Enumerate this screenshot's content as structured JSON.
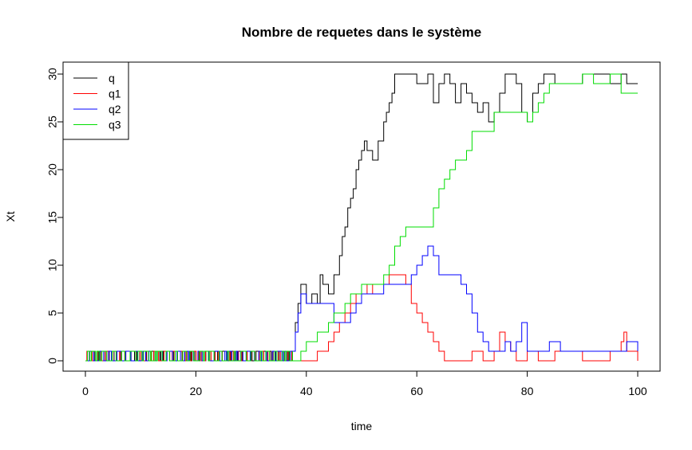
{
  "chart_data": {
    "type": "line",
    "title": "Nombre de requetes dans le système",
    "xlabel": "time",
    "ylabel": "Xt",
    "xlim": [
      0,
      100
    ],
    "ylim": [
      0,
      30
    ],
    "xticks": [
      0,
      20,
      40,
      60,
      80,
      100
    ],
    "yticks": [
      0,
      5,
      10,
      15,
      20,
      25,
      30
    ],
    "legend_position": "top-left",
    "series": [
      {
        "name": "q",
        "color": "#000000",
        "x": [
          0,
          37.5,
          38,
          38.5,
          39,
          40,
          41,
          42,
          42.5,
          43,
          44,
          45,
          46,
          46.5,
          47,
          47.5,
          48,
          48.5,
          49,
          49.5,
          50,
          50.5,
          51,
          52,
          53,
          54,
          54.5,
          55,
          55.5,
          56,
          57,
          60,
          62,
          63,
          64,
          65,
          66,
          67,
          68,
          69,
          70,
          71,
          72,
          73,
          74,
          75,
          76,
          78,
          79,
          80,
          81,
          82,
          83,
          85,
          90,
          95,
          97,
          98,
          100
        ],
        "values": [
          1,
          1,
          4,
          6,
          8,
          6,
          7,
          6,
          9,
          8,
          7,
          9,
          11,
          13,
          14,
          16,
          17,
          18,
          20,
          21,
          22,
          23,
          22,
          21,
          23,
          25,
          26,
          27,
          28,
          30,
          30,
          29,
          30,
          27,
          29,
          30,
          29,
          27,
          29,
          28,
          27,
          26,
          27,
          25,
          26,
          28,
          30,
          29,
          26,
          25,
          28,
          29,
          30,
          29,
          30,
          29,
          30,
          29,
          29
        ]
      },
      {
        "name": "q1",
        "color": "#ff0000",
        "x": [
          0,
          37.5,
          42,
          44,
          45,
          46,
          47,
          48,
          49,
          50,
          51,
          52,
          53,
          54,
          55,
          56,
          58,
          59,
          60,
          61,
          62,
          63,
          64,
          65,
          66,
          68,
          70,
          72,
          74,
          75,
          76,
          77,
          78,
          80,
          82,
          85,
          90,
          95,
          97,
          97.5,
          98,
          100
        ],
        "values": [
          1,
          0,
          1,
          2,
          3,
          4,
          5,
          6,
          7,
          8,
          7,
          8,
          8,
          8,
          9,
          9,
          8,
          6,
          5,
          4,
          3,
          2,
          1,
          0,
          0,
          0,
          1,
          0,
          1,
          3,
          2,
          1,
          0,
          1,
          0,
          1,
          0,
          1,
          2,
          3,
          1,
          0
        ]
      },
      {
        "name": "q2",
        "color": "#0000ff",
        "x": [
          0,
          37.5,
          38,
          38.5,
          39,
          40,
          42,
          43,
          44,
          45,
          46,
          48,
          49,
          50,
          52,
          54,
          56,
          58,
          59,
          60,
          61,
          62,
          63,
          64,
          65,
          66,
          67,
          68,
          69,
          70,
          71,
          72,
          73,
          74,
          75,
          76,
          77,
          78,
          79,
          80,
          82,
          84,
          86,
          90,
          95,
          97,
          98,
          100
        ],
        "values": [
          1,
          1,
          3,
          5,
          7,
          6,
          6,
          6,
          6,
          4,
          4,
          5,
          6,
          7,
          7,
          8,
          8,
          8,
          9,
          10,
          11,
          12,
          11,
          9,
          9,
          9,
          9,
          8,
          7,
          5,
          3,
          2,
          1,
          1,
          1,
          2,
          1,
          2,
          4,
          1,
          1,
          2,
          1,
          1,
          1,
          1,
          2,
          1
        ]
      },
      {
        "name": "q3",
        "color": "#00dd00",
        "x": [
          0,
          37.5,
          39,
          40,
          42,
          44,
          45,
          46,
          47,
          48,
          49,
          50,
          52,
          54,
          55,
          56,
          57,
          58,
          60,
          62,
          63,
          64,
          65,
          66,
          67,
          68,
          69,
          70,
          72,
          74,
          76,
          78,
          80,
          81,
          82,
          83,
          84,
          86,
          88,
          90,
          92,
          95,
          97,
          98,
          100
        ],
        "values": [
          1,
          0,
          1,
          2,
          3,
          4,
          5,
          5,
          6,
          7,
          7,
          8,
          8,
          9,
          10,
          12,
          13,
          14,
          14,
          14,
          16,
          18,
          19,
          20,
          21,
          21,
          22,
          24,
          24,
          26,
          26,
          26,
          25,
          26,
          27,
          28,
          29,
          29,
          29,
          30,
          29,
          30,
          28,
          28,
          28
        ]
      }
    ]
  }
}
